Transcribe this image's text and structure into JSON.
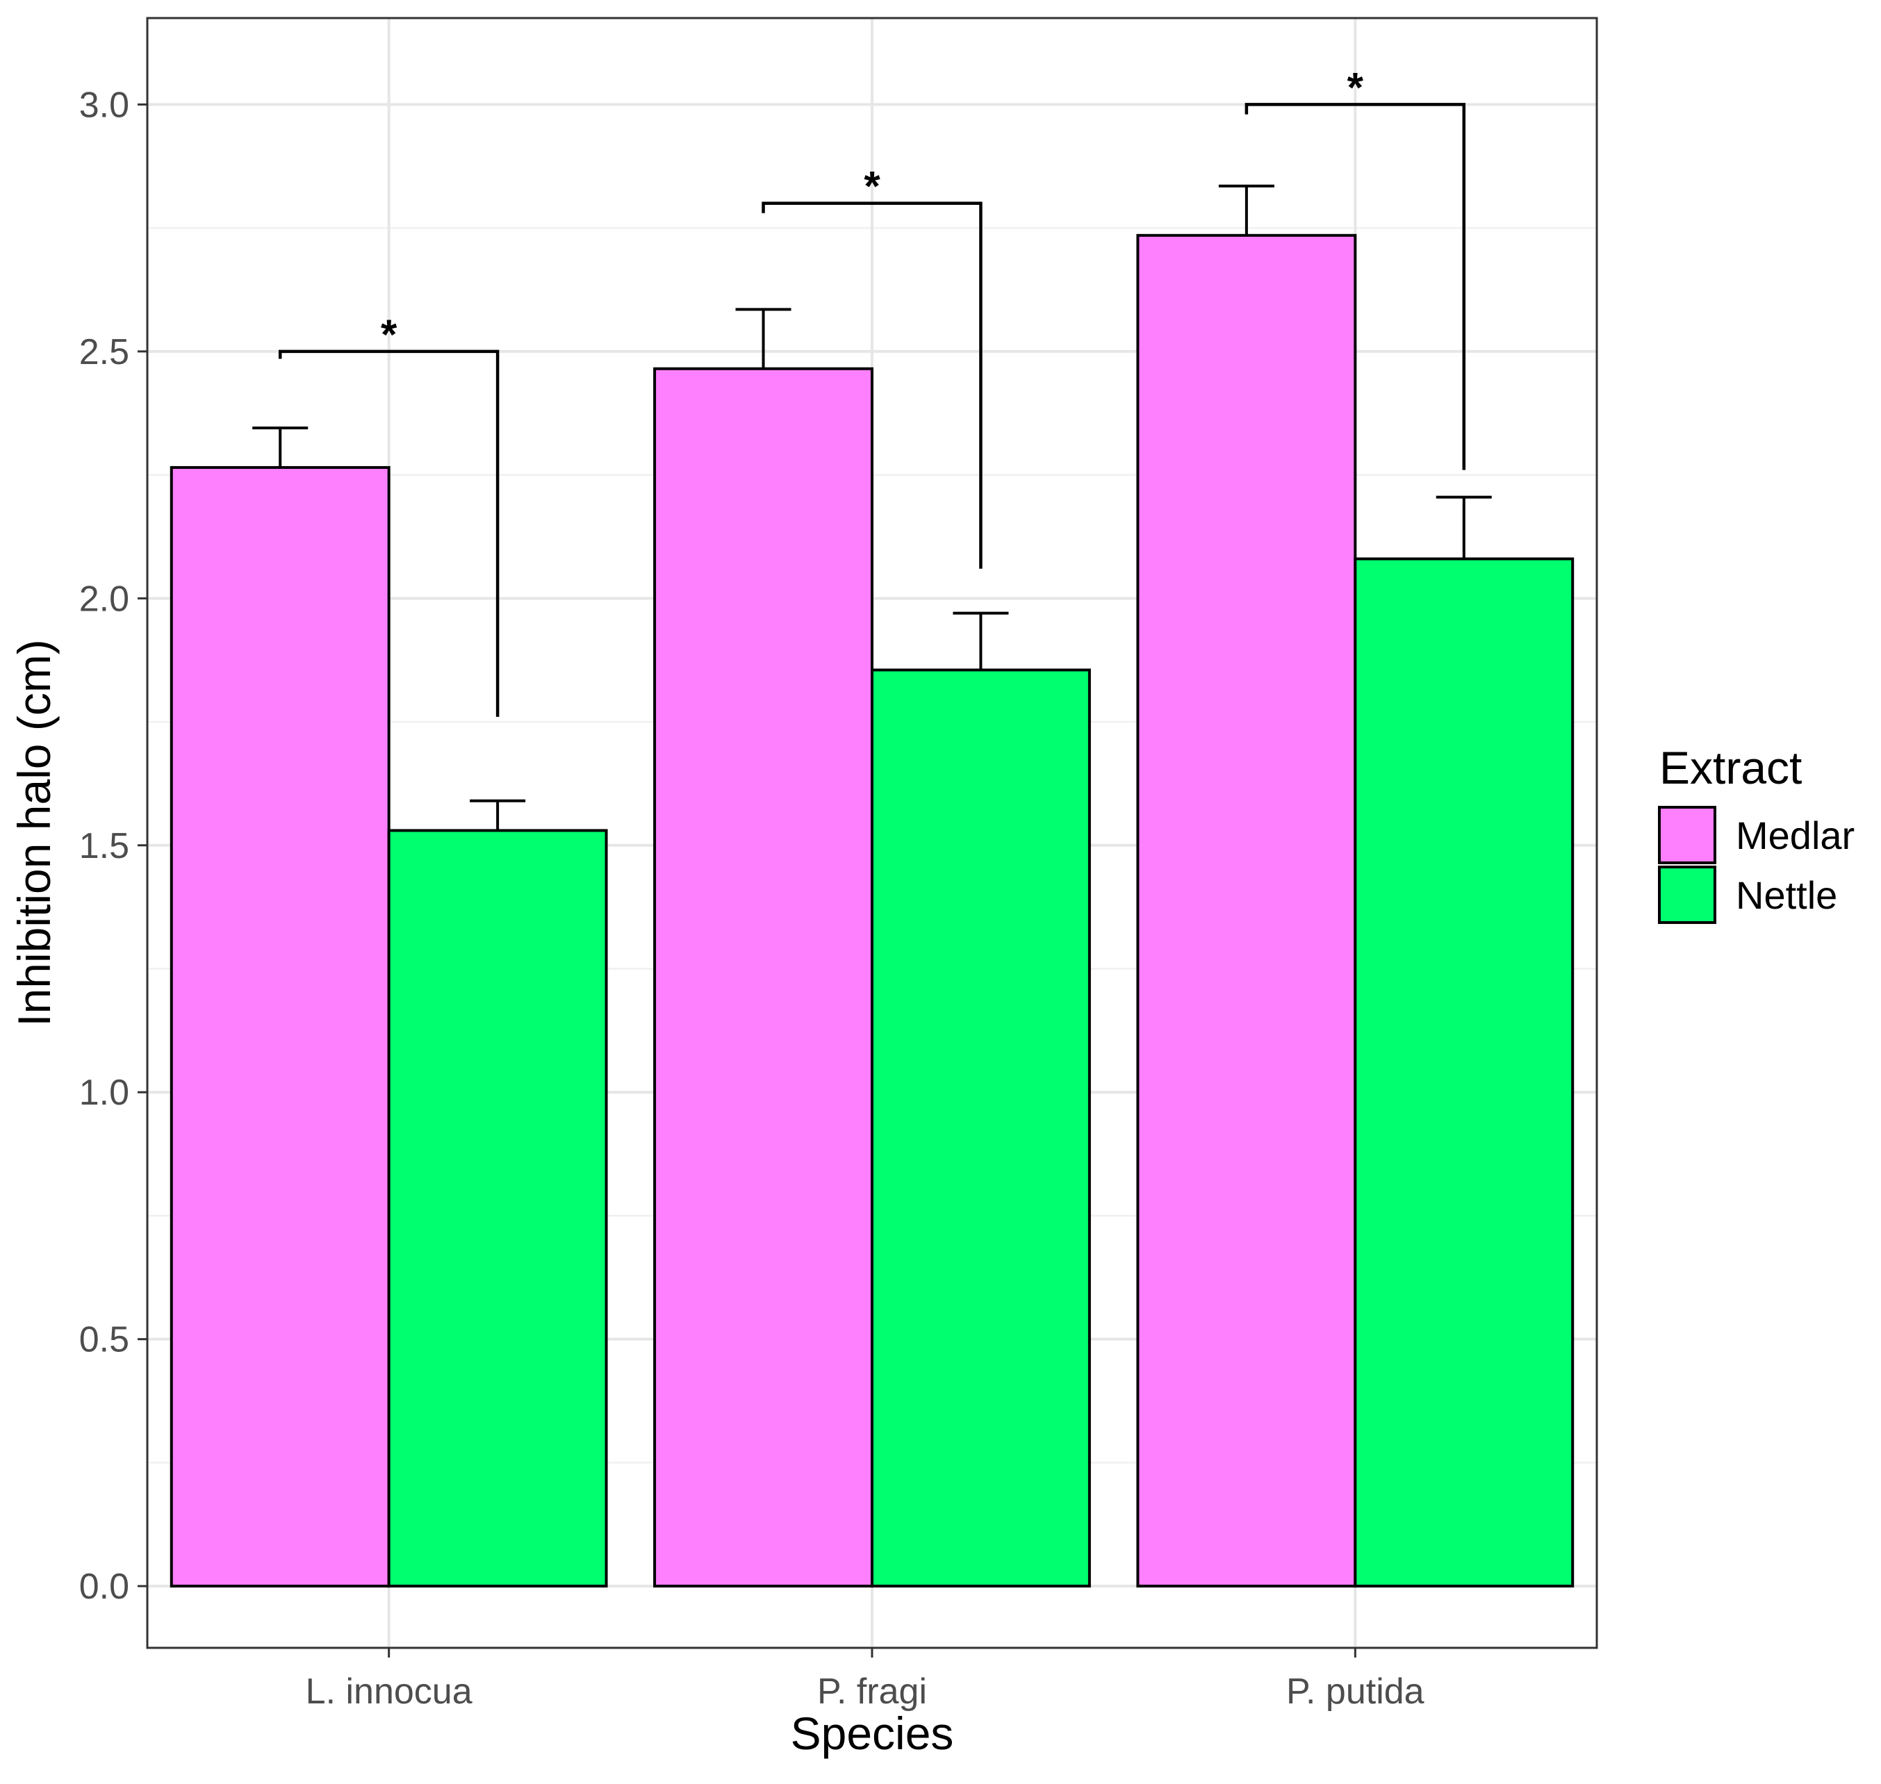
{
  "chart_data": {
    "type": "bar",
    "title": "",
    "xlabel": "Species",
    "ylabel": "Inhibition halo (cm)",
    "categories": [
      "L. innocua",
      "P. fragi",
      "P. putida"
    ],
    "series": [
      {
        "name": "Medlar",
        "values": [
          2.265,
          2.465,
          2.735
        ],
        "errors": [
          0.08,
          0.12,
          0.1
        ],
        "color": "#ff80ff"
      },
      {
        "name": "Nettle",
        "values": [
          1.53,
          1.855,
          2.08
        ],
        "errors": [
          0.06,
          0.115,
          0.125
        ],
        "color": "#00ff6f"
      }
    ],
    "ylim": [
      -0.125,
      3.175
    ],
    "yticks": [
      0.0,
      0.5,
      1.0,
      1.5,
      2.0,
      2.5,
      3.0
    ],
    "ytick_labels": [
      "0.0",
      "0.5",
      "1.0",
      "1.5",
      "2.0",
      "2.5",
      "3.0"
    ],
    "grid": true,
    "legend": {
      "title": "Extract",
      "position": "right"
    },
    "significance": [
      {
        "category": "L. innocua",
        "label": "*",
        "bracket_y": 2.5,
        "left_tip": 2.485,
        "right_tip": 1.76
      },
      {
        "category": "P. fragi",
        "label": "*",
        "bracket_y": 2.8,
        "left_tip": 2.78,
        "right_tip": 2.06
      },
      {
        "category": "P. putida",
        "label": "*",
        "bracket_y": 3.0,
        "left_tip": 2.98,
        "right_tip": 2.26
      }
    ]
  }
}
